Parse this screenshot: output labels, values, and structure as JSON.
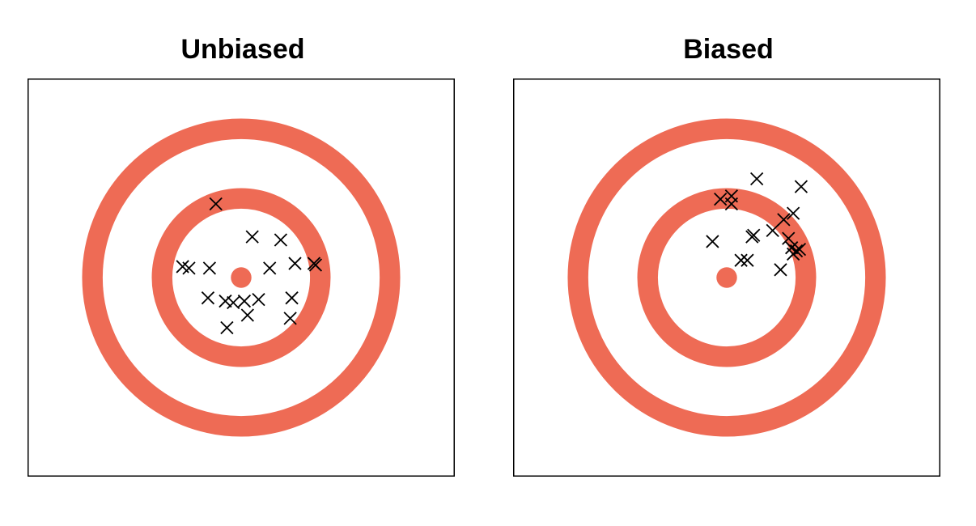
{
  "chart_data": [
    {
      "type": "scatter",
      "title": "Unbiased",
      "xlim": [
        -1.35,
        1.35
      ],
      "ylim": [
        -1.27,
        1.27
      ],
      "target": {
        "center": [
          0,
          0
        ],
        "ring_radii": [
          0.94,
          0.5
        ],
        "ring_width": 0.13,
        "bullseye_radius": 0.065,
        "color": "#ee6b55"
      },
      "marker": "x",
      "points": [
        {
          "x": -0.16,
          "y": 0.47
        },
        {
          "x": 0.07,
          "y": 0.26
        },
        {
          "x": 0.25,
          "y": 0.24
        },
        {
          "x": -0.37,
          "y": 0.07
        },
        {
          "x": -0.33,
          "y": 0.06
        },
        {
          "x": -0.2,
          "y": 0.06
        },
        {
          "x": 0.18,
          "y": 0.06
        },
        {
          "x": 0.34,
          "y": 0.09
        },
        {
          "x": 0.46,
          "y": 0.09
        },
        {
          "x": 0.47,
          "y": 0.08
        },
        {
          "x": -0.21,
          "y": -0.13
        },
        {
          "x": -0.1,
          "y": -0.15
        },
        {
          "x": -0.05,
          "y": -0.16
        },
        {
          "x": 0.02,
          "y": -0.15
        },
        {
          "x": 0.11,
          "y": -0.14
        },
        {
          "x": 0.32,
          "y": -0.13
        },
        {
          "x": 0.04,
          "y": -0.24
        },
        {
          "x": 0.31,
          "y": -0.26
        },
        {
          "x": -0.09,
          "y": -0.32
        }
      ]
    },
    {
      "type": "scatter",
      "title": "Biased",
      "xlim": [
        -1.35,
        1.35
      ],
      "ylim": [
        -1.27,
        1.27
      ],
      "target": {
        "center": [
          0,
          0
        ],
        "ring_radii": [
          0.94,
          0.5
        ],
        "ring_width": 0.13,
        "bullseye_radius": 0.065,
        "color": "#ee6b55"
      },
      "marker": "x",
      "points": [
        {
          "x": 0.19,
          "y": 0.63
        },
        {
          "x": 0.47,
          "y": 0.58
        },
        {
          "x": -0.04,
          "y": 0.5
        },
        {
          "x": 0.03,
          "y": 0.52
        },
        {
          "x": 0.03,
          "y": 0.47
        },
        {
          "x": 0.42,
          "y": 0.41
        },
        {
          "x": 0.36,
          "y": 0.37
        },
        {
          "x": 0.29,
          "y": 0.3
        },
        {
          "x": 0.17,
          "y": 0.27
        },
        {
          "x": 0.16,
          "y": 0.26
        },
        {
          "x": 0.39,
          "y": 0.25
        },
        {
          "x": -0.09,
          "y": 0.23
        },
        {
          "x": 0.41,
          "y": 0.19
        },
        {
          "x": 0.44,
          "y": 0.17
        },
        {
          "x": 0.46,
          "y": 0.18
        },
        {
          "x": 0.42,
          "y": 0.15
        },
        {
          "x": 0.09,
          "y": 0.11
        },
        {
          "x": 0.13,
          "y": 0.11
        },
        {
          "x": 0.34,
          "y": 0.05
        }
      ]
    }
  ]
}
